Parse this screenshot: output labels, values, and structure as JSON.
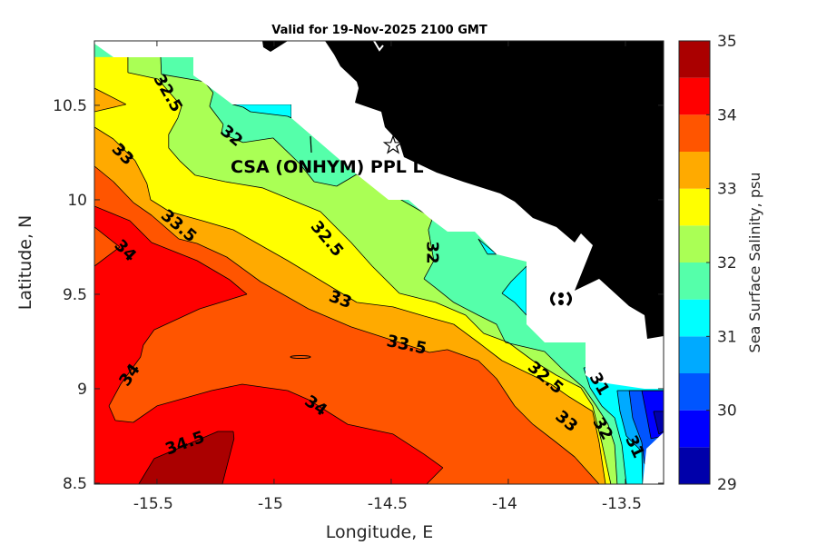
{
  "chart_data": {
    "type": "contour-map",
    "title": "Valid for 19-Nov-2025 2100 GMT",
    "xlabel": "Longitude, E",
    "ylabel": "Latitude, N",
    "xlim": [
      -15.767,
      -13.337
    ],
    "ylim": [
      8.495,
      10.841
    ],
    "xticks": [
      -15.5,
      -15,
      -14.5,
      -14,
      -13.5
    ],
    "xtick_labels": [
      "-15.5",
      "-15",
      "-14.5",
      "-14",
      "-13.5"
    ],
    "yticks": [
      8.5,
      9,
      9.5,
      10,
      10.5
    ],
    "ytick_labels": [
      "8.5",
      "9",
      "9.5",
      "10",
      "10.5"
    ],
    "site_label": "CSA (ONHYM) PPL L",
    "site_marker": {
      "lon": -14.492,
      "lat": 10.288
    },
    "colorbar": {
      "label": "Sea Surface Salinity, psu",
      "min": 29,
      "max": 35,
      "step": 0.5,
      "tick_labels": [
        "35",
        "34",
        "33",
        "32",
        "31",
        "30",
        "29"
      ],
      "colors": [
        "#0000aa",
        "#0000ff",
        "#0055ff",
        "#00aaff",
        "#00ffff",
        "#55ffaa",
        "#aaff55",
        "#ffff00",
        "#ffaa00",
        "#ff5500",
        "#ff0000",
        "#aa0000"
      ]
    },
    "base_fill": {
      "level": 31.5,
      "color": "#55ffaa"
    },
    "fills": [
      {
        "level": 31,
        "color": "#00ffff",
        "polygon": [
          [
            -15.178,
            10.505
          ],
          [
            -14.926,
            10.505
          ],
          [
            -14.926,
            10.433
          ],
          [
            -14.942,
            10.442
          ],
          [
            -15.101,
            10.466
          ],
          [
            -15.132,
            10.49
          ]
        ]
      },
      {
        "level": 31,
        "color": "#00ffff",
        "polygon": [
          [
            -14.128,
            9.793
          ],
          [
            -14.05,
            9.712
          ],
          [
            -14.089,
            9.712
          ]
        ]
      },
      {
        "level": 31,
        "color": "#00ffff",
        "polygon": [
          [
            -13.922,
            9.649
          ],
          [
            -13.988,
            9.567
          ],
          [
            -14.027,
            9.505
          ],
          [
            -13.973,
            9.457
          ],
          [
            -13.922,
            9.389
          ]
        ]
      },
      {
        "level": 31,
        "color": "#00ffff",
        "polygon": [
          [
            -13.678,
            9.111
          ],
          [
            -13.651,
            9.005
          ],
          [
            -13.601,
            8.909
          ],
          [
            -13.546,
            8.846
          ],
          [
            -13.515,
            8.702
          ],
          [
            -13.496,
            8.495
          ],
          [
            -13.337,
            8.495
          ],
          [
            -13.337,
            9.111
          ]
        ]
      },
      {
        "level": 30.5,
        "color": "#00aaff",
        "polygon": [
          [
            -13.535,
            8.99
          ],
          [
            -13.523,
            8.88
          ],
          [
            -13.496,
            8.75
          ],
          [
            -13.43,
            8.668
          ],
          [
            -13.426,
            8.495
          ],
          [
            -13.337,
            8.495
          ],
          [
            -13.337,
            8.99
          ]
        ]
      },
      {
        "level": 30,
        "color": "#0055ff",
        "polygon": [
          [
            -13.484,
            8.99
          ],
          [
            -13.469,
            8.846
          ],
          [
            -13.43,
            8.716
          ],
          [
            -13.419,
            8.606
          ],
          [
            -13.337,
            8.495
          ],
          [
            -13.337,
            8.99
          ]
        ]
      },
      {
        "level": 29.5,
        "color": "#0000ff",
        "polygon": [
          [
            -13.43,
            8.99
          ],
          [
            -13.407,
            8.846
          ],
          [
            -13.391,
            8.736
          ],
          [
            -13.337,
            8.75
          ],
          [
            -13.337,
            8.99
          ]
        ]
      },
      {
        "level": 29,
        "color": "#0000aa",
        "polygon": [
          [
            -13.38,
            8.88
          ],
          [
            -13.337,
            8.88
          ],
          [
            -13.337,
            8.774
          ],
          [
            -13.357,
            8.76
          ]
        ]
      },
      {
        "level": 32,
        "color": "#aaff55",
        "polygon": [
          [
            -15.484,
            10.755
          ],
          [
            -15.481,
            10.664
          ],
          [
            -15.298,
            10.625
          ],
          [
            -15.26,
            10.567
          ],
          [
            -15.275,
            10.495
          ],
          [
            -15.217,
            10.399
          ],
          [
            -15.225,
            10.351
          ],
          [
            -15.132,
            10.303
          ],
          [
            -15.004,
            10.327
          ],
          [
            -14.891,
            10.192
          ],
          [
            -14.829,
            10.096
          ],
          [
            -14.733,
            10.072
          ],
          [
            -14.647,
            10.135
          ],
          [
            -14.349,
            9.923
          ],
          [
            -14.326,
            9.894
          ],
          [
            -14.341,
            9.841
          ],
          [
            -14.318,
            9.678
          ],
          [
            -14.36,
            9.582
          ],
          [
            -14.31,
            9.534
          ],
          [
            -14.233,
            9.457
          ],
          [
            -14.128,
            9.389
          ],
          [
            -14.05,
            9.341
          ],
          [
            -14.012,
            9.245
          ],
          [
            -13.845,
            9.197
          ],
          [
            -13.767,
            9.101
          ],
          [
            -13.678,
            9.005
          ],
          [
            -13.624,
            8.909
          ],
          [
            -13.574,
            8.812
          ],
          [
            -13.546,
            8.702
          ],
          [
            -13.535,
            8.495
          ],
          [
            -15.767,
            8.495
          ],
          [
            -15.767,
            10.755
          ]
        ]
      },
      {
        "level": 32.5,
        "color": "#ffff00",
        "polygon": [
          [
            -15.624,
            10.755
          ],
          [
            -15.624,
            10.673
          ],
          [
            -15.496,
            10.639
          ],
          [
            -15.395,
            10.495
          ],
          [
            -15.411,
            10.433
          ],
          [
            -15.45,
            10.346
          ],
          [
            -15.45,
            10.274
          ],
          [
            -15.403,
            10.207
          ],
          [
            -15.337,
            10.13
          ],
          [
            -15.209,
            10.096
          ],
          [
            -15.05,
            10.063
          ],
          [
            -14.88,
            9.976
          ],
          [
            -14.802,
            9.937
          ],
          [
            -14.671,
            9.774
          ],
          [
            -14.581,
            9.649
          ],
          [
            -14.465,
            9.505
          ],
          [
            -14.31,
            9.457
          ],
          [
            -14.182,
            9.389
          ],
          [
            -14.105,
            9.293
          ],
          [
            -14.0,
            9.245
          ],
          [
            -13.895,
            9.149
          ],
          [
            -13.795,
            9.072
          ],
          [
            -13.69,
            9.005
          ],
          [
            -13.64,
            8.909
          ],
          [
            -13.601,
            8.716
          ],
          [
            -13.562,
            8.495
          ],
          [
            -15.767,
            8.495
          ],
          [
            -15.767,
            10.755
          ]
        ]
      },
      {
        "level": 33,
        "color": "#ffaa00",
        "polygon": [
          [
            -15.767,
            10.385
          ],
          [
            -15.686,
            10.322
          ],
          [
            -15.593,
            10.207
          ],
          [
            -15.543,
            10.087
          ],
          [
            -15.527,
            10.0
          ],
          [
            -15.446,
            9.937
          ],
          [
            -15.306,
            9.889
          ],
          [
            -15.174,
            9.841
          ],
          [
            -15.058,
            9.76
          ],
          [
            -14.942,
            9.678
          ],
          [
            -14.775,
            9.553
          ],
          [
            -14.647,
            9.457
          ],
          [
            -14.492,
            9.433
          ],
          [
            -14.36,
            9.385
          ],
          [
            -14.233,
            9.341
          ],
          [
            -14.128,
            9.245
          ],
          [
            -14.027,
            9.149
          ],
          [
            -13.922,
            9.086
          ],
          [
            -13.818,
            9.024
          ],
          [
            -13.74,
            8.957
          ],
          [
            -13.64,
            8.88
          ],
          [
            -13.612,
            8.716
          ],
          [
            -13.585,
            8.495
          ],
          [
            -15.767,
            8.495
          ]
        ]
      },
      {
        "level": 33,
        "color": "#ffaa00",
        "polygon": [
          [
            -15.767,
            10.591
          ],
          [
            -15.632,
            10.505
          ],
          [
            -15.767,
            10.466
          ]
        ]
      },
      {
        "level": 33.5,
        "color": "#ff5500",
        "polygon": [
          [
            -15.767,
            10.178
          ],
          [
            -15.686,
            10.096
          ],
          [
            -15.601,
            9.986
          ],
          [
            -15.523,
            9.918
          ],
          [
            -15.407,
            9.793
          ],
          [
            -15.329,
            9.769
          ],
          [
            -15.202,
            9.697
          ],
          [
            -15.058,
            9.567
          ],
          [
            -14.853,
            9.423
          ],
          [
            -14.671,
            9.327
          ],
          [
            -14.465,
            9.245
          ],
          [
            -14.337,
            9.192
          ],
          [
            -14.26,
            9.207
          ],
          [
            -14.128,
            9.149
          ],
          [
            -14.05,
            9.053
          ],
          [
            -13.973,
            8.909
          ],
          [
            -13.895,
            8.812
          ],
          [
            -13.795,
            8.716
          ],
          [
            -13.717,
            8.639
          ],
          [
            -13.612,
            8.495
          ],
          [
            -15.767,
            8.495
          ]
        ]
      },
      {
        "level": 34,
        "color": "#ff0000",
        "polygon": [
          [
            -15.767,
            9.966
          ],
          [
            -15.616,
            9.889
          ],
          [
            -15.523,
            9.774
          ],
          [
            -15.329,
            9.678
          ],
          [
            -15.19,
            9.577
          ],
          [
            -15.116,
            9.5
          ],
          [
            -15.318,
            9.423
          ],
          [
            -15.512,
            9.312
          ],
          [
            -15.558,
            9.231
          ],
          [
            -15.57,
            9.168
          ],
          [
            -15.655,
            9.024
          ],
          [
            -15.705,
            8.909
          ],
          [
            -15.678,
            8.832
          ],
          [
            -15.601,
            8.822
          ],
          [
            -15.5,
            8.909
          ],
          [
            -15.267,
            8.99
          ],
          [
            -15.136,
            9.024
          ],
          [
            -14.942,
            8.99
          ],
          [
            -14.853,
            8.942
          ],
          [
            -14.686,
            8.812
          ],
          [
            -14.492,
            8.76
          ],
          [
            -14.36,
            8.654
          ],
          [
            -14.279,
            8.582
          ],
          [
            -14.349,
            8.495
          ],
          [
            -15.767,
            8.495
          ]
        ]
      },
      {
        "level": 33.5,
        "color": "#ff5500",
        "polygon": [
          [
            -15.767,
            9.856
          ],
          [
            -15.659,
            9.75
          ],
          [
            -15.767,
            9.649
          ]
        ]
      },
      {
        "level": 34.5,
        "color": "#aa0000",
        "polygon": [
          [
            -15.578,
            8.495
          ],
          [
            -15.512,
            8.63
          ],
          [
            -15.24,
            8.774
          ],
          [
            -15.174,
            8.774
          ],
          [
            -15.171,
            8.736
          ],
          [
            -15.221,
            8.495
          ]
        ]
      }
    ],
    "contour_labels": [
      {
        "text": "32.5",
        "lon": -15.454,
        "lat": 10.563
      },
      {
        "text": "32",
        "lon": -15.182,
        "lat": 10.337
      },
      {
        "text": "33",
        "lon": -15.647,
        "lat": 10.24
      },
      {
        "text": "33.5",
        "lon": -15.454,
        "lat": 9.832
      },
      {
        "text": "34",
        "lon": -15.558,
        "lat": 9.817
      },
      {
        "text": "32.5",
        "lon": -14.775,
        "lat": 9.793
      },
      {
        "text": "32",
        "lon": -14.326,
        "lat": 9.721
      },
      {
        "text": "33",
        "lon": -14.717,
        "lat": 9.471
      },
      {
        "text": "33.5",
        "lon": -14.434,
        "lat": 9.231
      },
      {
        "text": "34",
        "lon": -15.616,
        "lat": 9.072
      },
      {
        "text": "34",
        "lon": -14.822,
        "lat": 8.909
      },
      {
        "text": "34.5",
        "lon": -15.38,
        "lat": 8.711
      },
      {
        "text": "32.5",
        "lon": -13.826,
        "lat": 9.038
      },
      {
        "text": "33",
        "lon": -13.729,
        "lat": 8.846
      },
      {
        "text": "31",
        "lon": -13.612,
        "lat": 8.957
      },
      {
        "text": "32",
        "lon": -13.574,
        "lat": 8.846
      },
      {
        "text": "31",
        "lon": -13.515,
        "lat": 8.808
      }
    ]
  }
}
